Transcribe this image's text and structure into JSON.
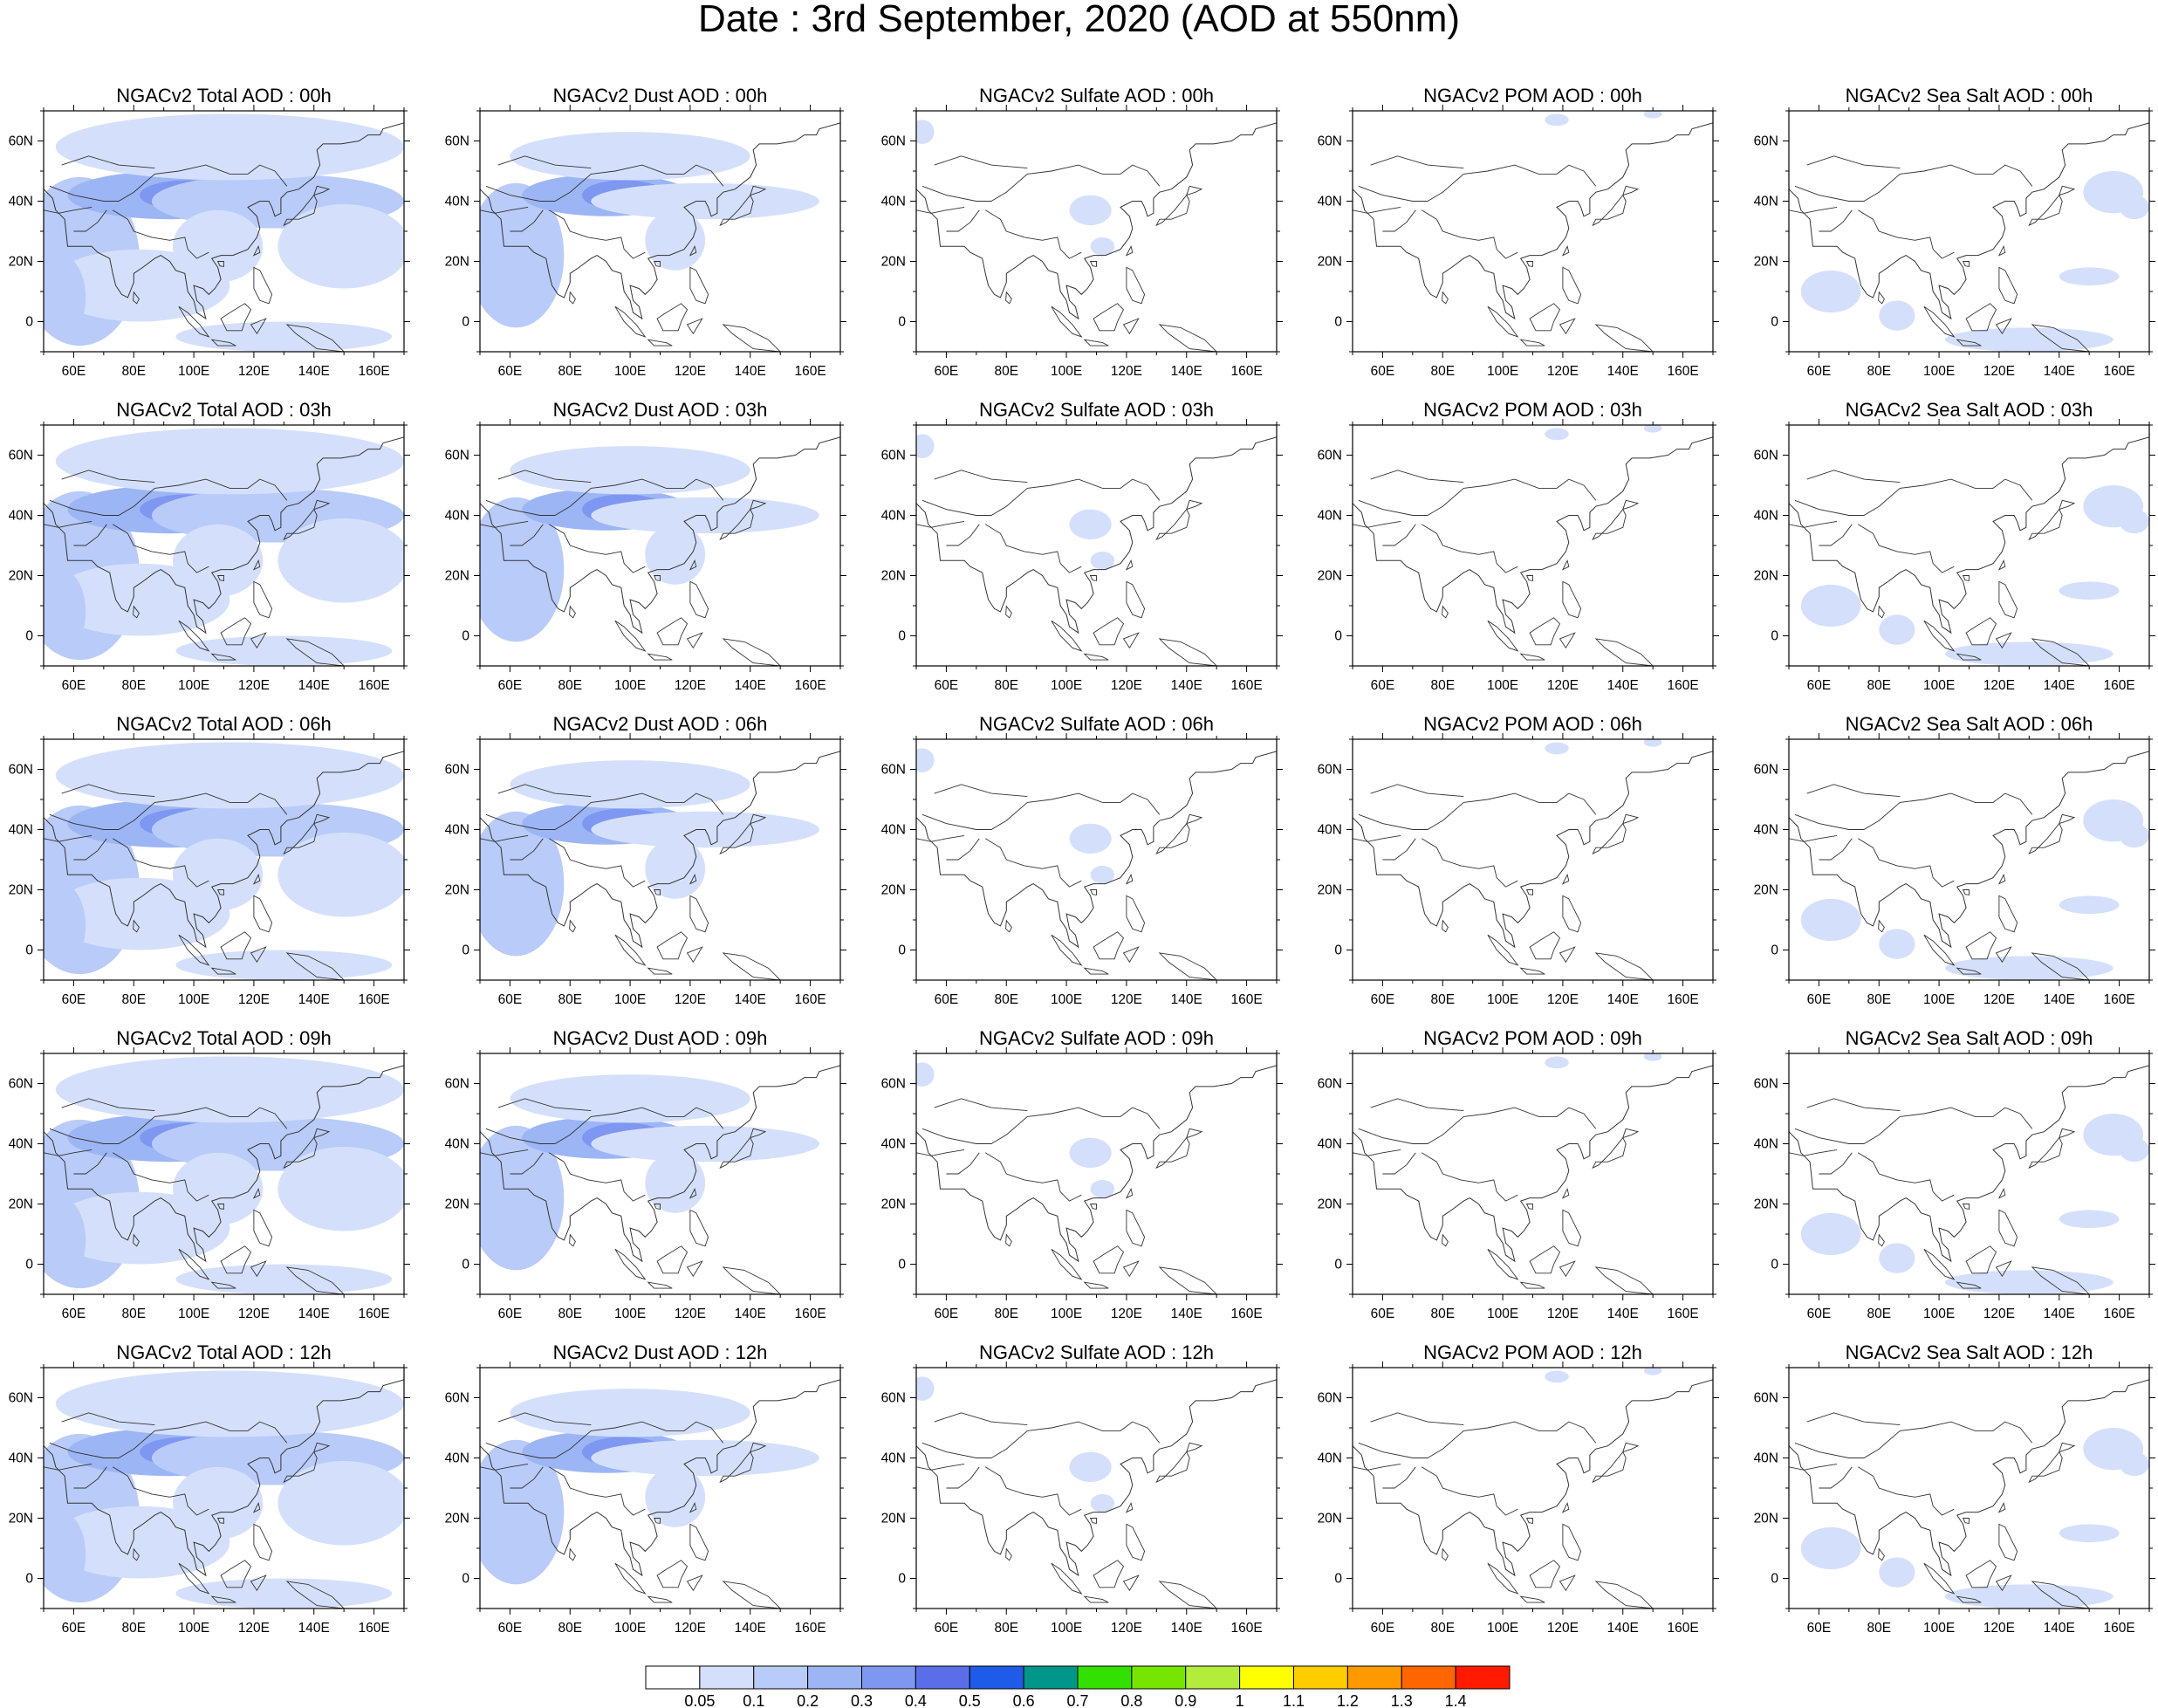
{
  "title": "Date : 3rd September, 2020 (AOD at 550nm)",
  "rows": [
    [
      "NGACv2 Total AOD : 00h",
      "NGACv2 Dust AOD : 00h",
      "NGACv2 Sulfate AOD : 00h",
      "NGACv2 POM AOD : 00h",
      "NGACv2 Sea Salt AOD : 00h"
    ],
    [
      "NGACv2 Total AOD : 03h",
      "NGACv2 Dust AOD : 03h",
      "NGACv2 Sulfate AOD : 03h",
      "NGACv2 POM AOD : 03h",
      "NGACv2 Sea Salt AOD : 03h"
    ],
    [
      "NGACv2 Total AOD : 06h",
      "NGACv2 Dust AOD : 06h",
      "NGACv2 Sulfate AOD : 06h",
      "NGACv2 POM AOD : 06h",
      "NGACv2 Sea Salt AOD : 06h"
    ],
    [
      "NGACv2 Total AOD : 09h",
      "NGACv2 Dust AOD : 09h",
      "NGACv2 Sulfate AOD : 09h",
      "NGACv2 POM AOD : 09h",
      "NGACv2 Sea Salt  AOD : 09h"
    ],
    [
      "NGACv2 Total AOD  : 12h",
      "NGACv2 Dust AOD : 12h",
      "NGACv2 Sulfate AOD : 12h",
      "NGACv2 POM  AOD : 12h",
      "NGACv2 Sea Salt  AOD : 12h"
    ]
  ],
  "lat_ticks": [
    "60N",
    "40N",
    "20N",
    "0"
  ],
  "lat_values": [
    60,
    40,
    20,
    0
  ],
  "lat_range": [
    -10,
    70
  ],
  "lon_ticks": [
    "60E",
    "80E",
    "100E",
    "120E",
    "140E",
    "160E"
  ],
  "lon_values": [
    60,
    80,
    100,
    120,
    140,
    160
  ],
  "lon_range": [
    50,
    170
  ],
  "colorbar": {
    "labels": [
      "0.05",
      "0.1",
      "0.2",
      "0.3",
      "0.4",
      "0.5",
      "0.6",
      "0.7",
      "0.8",
      "0.9",
      "1",
      "1.1",
      "1.2",
      "1.3",
      "1.4"
    ],
    "colors": [
      "#ffffff",
      "#d4e0fb",
      "#b9cbf8",
      "#9cb6f5",
      "#7e97f1",
      "#5b6eea",
      "#1e5be8",
      "#00968a",
      "#33e000",
      "#76e600",
      "#b3ec3a",
      "#ffff00",
      "#ffcc00",
      "#ff9900",
      "#ff6600",
      "#ff1a00"
    ]
  },
  "colors": {
    "low": "#d4e0fb",
    "mid": "#b9cbf8",
    "high": "#9cb6f5",
    "peak": "#7e97f1"
  }
}
